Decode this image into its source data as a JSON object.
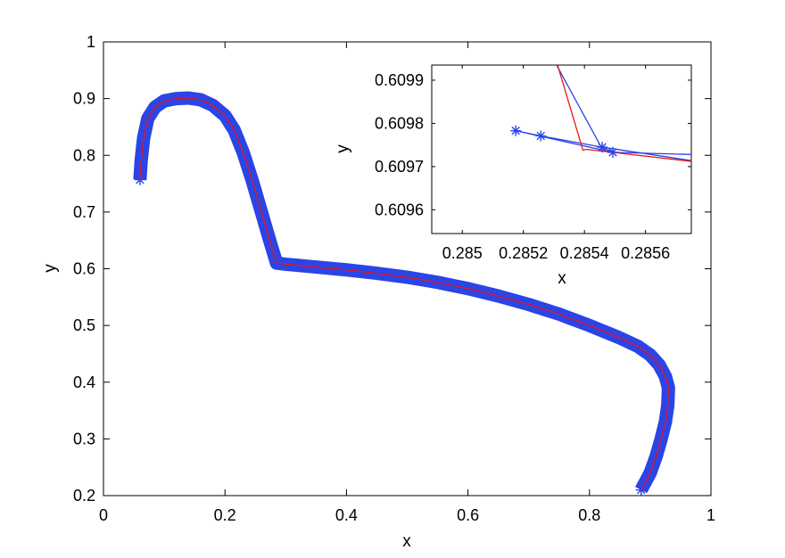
{
  "chart_data": [
    {
      "type": "line",
      "panel": "main",
      "xlabel": "x",
      "ylabel": "y",
      "xlim": [
        0,
        1
      ],
      "ylim": [
        0.2,
        1
      ],
      "grid": false,
      "xticks": [
        "0",
        "0.2",
        "0.4",
        "0.6",
        "0.8",
        "1"
      ],
      "yticks": [
        "0.2",
        "0.3",
        "0.4",
        "0.5",
        "0.6",
        "0.7",
        "0.8",
        "0.9",
        "1"
      ],
      "series": [
        {
          "style": "blue-star-markers",
          "color": "#2a44e6",
          "x": [
            0.06,
            0.062,
            0.066,
            0.073,
            0.085,
            0.1,
            0.12,
            0.14,
            0.16,
            0.18,
            0.2,
            0.215,
            0.23,
            0.245,
            0.26,
            0.275,
            0.285,
            0.3,
            0.35,
            0.4,
            0.45,
            0.5,
            0.55,
            0.6,
            0.65,
            0.7,
            0.75,
            0.8,
            0.85,
            0.88,
            0.9,
            0.915,
            0.925,
            0.93,
            0.929,
            0.925,
            0.918,
            0.91,
            0.9,
            0.89,
            0.885
          ],
          "y": [
            0.757,
            0.79,
            0.83,
            0.865,
            0.885,
            0.896,
            0.9,
            0.901,
            0.898,
            0.888,
            0.87,
            0.845,
            0.805,
            0.755,
            0.7,
            0.645,
            0.61,
            0.608,
            0.603,
            0.598,
            0.592,
            0.585,
            0.576,
            0.565,
            0.552,
            0.537,
            0.52,
            0.5,
            0.478,
            0.463,
            0.448,
            0.43,
            0.41,
            0.39,
            0.36,
            0.33,
            0.3,
            0.27,
            0.24,
            0.22,
            0.21
          ]
        },
        {
          "style": "red-line",
          "color": "#e8141a",
          "x": [
            0.06,
            0.062,
            0.066,
            0.073,
            0.085,
            0.1,
            0.12,
            0.14,
            0.16,
            0.18,
            0.2,
            0.215,
            0.23,
            0.245,
            0.26,
            0.275,
            0.285,
            0.3,
            0.35,
            0.4,
            0.45,
            0.5,
            0.55,
            0.6,
            0.65,
            0.7,
            0.75,
            0.8,
            0.85,
            0.88,
            0.9,
            0.915,
            0.925,
            0.93,
            0.929,
            0.925,
            0.918,
            0.91,
            0.9,
            0.89,
            0.885
          ],
          "y": [
            0.757,
            0.79,
            0.83,
            0.865,
            0.885,
            0.896,
            0.9,
            0.901,
            0.898,
            0.888,
            0.87,
            0.845,
            0.805,
            0.755,
            0.7,
            0.645,
            0.61,
            0.608,
            0.603,
            0.598,
            0.592,
            0.585,
            0.576,
            0.565,
            0.552,
            0.537,
            0.52,
            0.5,
            0.478,
            0.463,
            0.448,
            0.43,
            0.41,
            0.39,
            0.36,
            0.33,
            0.3,
            0.27,
            0.24,
            0.22,
            0.21
          ]
        }
      ]
    },
    {
      "type": "line",
      "panel": "inset",
      "xlabel": "x",
      "ylabel": "y",
      "xlim": [
        0.2849,
        0.28575
      ],
      "ylim": [
        0.609545,
        0.609935
      ],
      "grid": false,
      "xticks": [
        "0.285",
        "0.2852",
        "0.2854",
        "0.2856"
      ],
      "yticks": [
        "0.6096",
        "0.6097",
        "0.6098",
        "0.6099"
      ],
      "series": [
        {
          "style": "blue-line",
          "color": "#2a44e6",
          "x": [
            0.285305,
            0.285455
          ],
          "y": [
            0.60994,
            0.609745
          ]
        },
        {
          "style": "blue-line",
          "color": "#2a44e6",
          "x": [
            0.285175,
            0.285257,
            0.285458,
            0.285493,
            0.28575
          ],
          "y": [
            0.609783,
            0.609771,
            0.609745,
            0.609733,
            0.609728
          ]
        },
        {
          "style": "blue-line",
          "color": "#2a44e6",
          "x": [
            0.285175,
            0.285493
          ],
          "y": [
            0.609783,
            0.609733
          ]
        },
        {
          "style": "blue-line",
          "color": "#2a44e6",
          "x": [
            0.285458,
            0.28575
          ],
          "y": [
            0.609745,
            0.609714
          ]
        },
        {
          "style": "red-line",
          "color": "#e8141a",
          "x": [
            0.28531,
            0.285395,
            0.285405,
            0.28543,
            0.28575
          ],
          "y": [
            0.60994,
            0.609738,
            0.60974,
            0.609738,
            0.609712
          ]
        },
        {
          "style": "blue-star-markers",
          "color": "#2a44e6",
          "x": [
            0.285175,
            0.285257,
            0.285458,
            0.285493
          ],
          "y": [
            0.609783,
            0.609771,
            0.609745,
            0.609733
          ]
        }
      ]
    }
  ]
}
